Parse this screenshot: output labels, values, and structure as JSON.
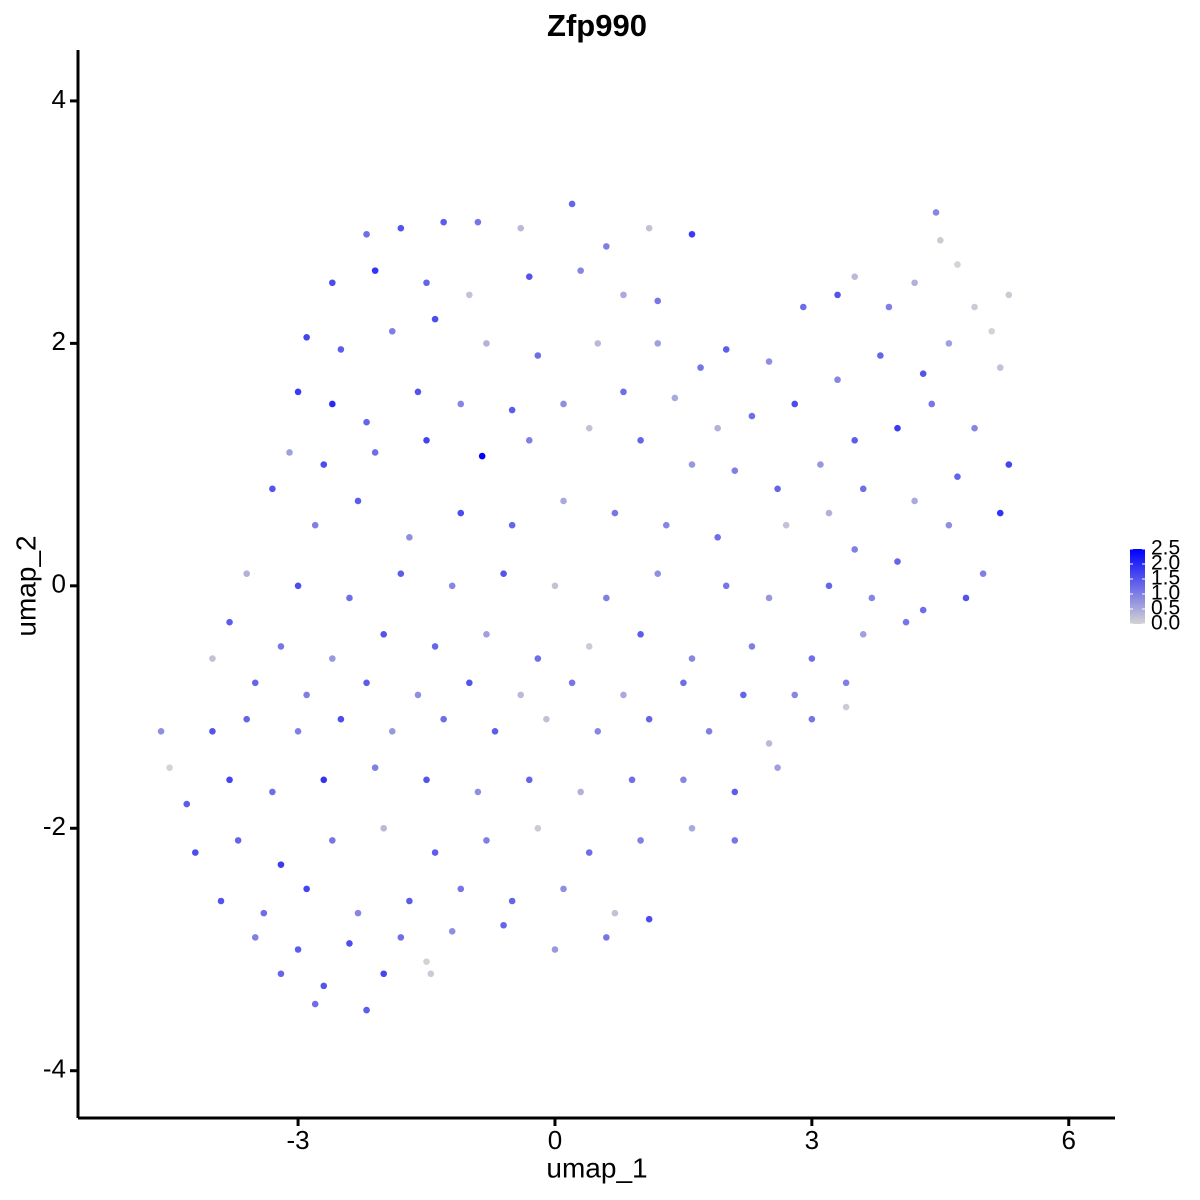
{
  "chart_data": {
    "type": "scatter",
    "title": "Zfp990",
    "x_label": "umap_1",
    "y_label": "umap_2",
    "xlim": [
      -5.57,
      6.54
    ],
    "ylim": [
      -4.39,
      4.42
    ],
    "xticks": [
      -3,
      0,
      3,
      6
    ],
    "yticks": [
      -4,
      -2,
      0,
      2,
      4
    ],
    "colorbar": {
      "colors": [
        "#d3d3d3",
        "#0000ff"
      ],
      "limits": [
        0,
        2.5
      ],
      "ticks": [
        {
          "value": 0,
          "label": "0.0"
        },
        {
          "value": 0.5,
          "label": "0.5"
        },
        {
          "value": 1,
          "label": "1.0"
        },
        {
          "value": 1.5,
          "label": "1.5"
        },
        {
          "value": 2,
          "label": "2.0"
        },
        {
          "value": 2.5,
          "label": "2.5"
        }
      ]
    },
    "x": [
      -2.2,
      -1.8,
      -1.3,
      -0.9,
      -0.4,
      0.2,
      0.6,
      1.1,
      1.6,
      -2.6,
      -2.1,
      -1.5,
      -1.0,
      -0.3,
      0.3,
      0.8,
      1.2,
      -2.9,
      -2.5,
      -1.9,
      -1.4,
      -0.8,
      -0.2,
      0.5,
      1.2,
      -3.0,
      -2.6,
      -2.2,
      -1.6,
      -1.1,
      -0.5,
      0.1,
      0.8,
      1.4,
      -3.1,
      -2.7,
      -2.1,
      -1.5,
      -0.85,
      -0.3,
      0.4,
      1.0,
      1.6,
      1.7,
      2.0,
      2.5,
      2.9,
      3.3,
      3.5,
      3.9,
      4.2,
      4.45,
      4.5,
      4.7,
      4.9,
      5.1,
      5.3,
      5.2,
      4.6,
      4.3,
      3.8,
      3.3,
      2.8,
      2.3,
      1.9,
      2.1,
      2.6,
      3.1,
      3.5,
      4.0,
      4.4,
      4.9,
      5.3,
      5.2,
      4.7,
      4.2,
      3.6,
      3.2,
      -3.3,
      -2.8,
      -2.3,
      -1.7,
      -1.1,
      -0.5,
      0.1,
      0.7,
      1.3,
      1.9,
      2.7,
      3.5,
      4.0,
      4.6,
      5.0,
      -3.6,
      -3.0,
      -2.4,
      -1.8,
      -1.2,
      -0.6,
      0.0,
      0.6,
      1.2,
      2.0,
      2.5,
      3.2,
      3.7,
      4.3,
      4.8,
      -3.8,
      -3.2,
      -2.6,
      -2.0,
      -1.4,
      -0.8,
      -0.2,
      0.4,
      1.0,
      1.6,
      2.3,
      3.0,
      3.6,
      4.1,
      -4.0,
      -3.5,
      -2.9,
      -2.2,
      -1.6,
      -1.0,
      -0.4,
      0.2,
      0.8,
      1.5,
      2.2,
      2.8,
      3.4,
      -4.6,
      -4.5,
      -4.0,
      -3.6,
      -3.0,
      -2.5,
      -1.9,
      -1.3,
      -0.7,
      -0.1,
      0.5,
      1.1,
      1.8,
      2.5,
      3.0,
      3.4,
      -4.3,
      -3.8,
      -3.3,
      -2.7,
      -2.1,
      -1.5,
      -0.9,
      -0.3,
      0.3,
      0.9,
      1.5,
      2.1,
      2.6,
      -4.2,
      -3.7,
      -3.2,
      -2.6,
      -2.0,
      -1.4,
      -0.8,
      -0.2,
      0.4,
      1.0,
      1.6,
      2.1,
      -3.9,
      -3.4,
      -2.9,
      -2.3,
      -1.7,
      -1.1,
      -0.5,
      0.1,
      0.7,
      1.1,
      -3.5,
      -3.0,
      -2.4,
      -1.8,
      -1.2,
      -0.6,
      0.0,
      0.6,
      -3.2,
      -2.7,
      -2.2,
      -2.0,
      -1.5,
      -1.45,
      -2.8
    ],
    "y": [
      2.9,
      2.95,
      3.0,
      3.0,
      2.95,
      3.15,
      2.8,
      2.95,
      2.9,
      2.5,
      2.6,
      2.5,
      2.4,
      2.55,
      2.6,
      2.4,
      2.35,
      2.05,
      1.95,
      2.1,
      2.2,
      2.0,
      1.9,
      2.0,
      2.0,
      1.6,
      1.5,
      1.35,
      1.6,
      1.5,
      1.45,
      1.5,
      1.6,
      1.55,
      1.1,
      1.0,
      1.1,
      1.2,
      1.07,
      1.2,
      1.3,
      1.2,
      1.0,
      1.8,
      1.95,
      1.85,
      2.3,
      2.4,
      2.55,
      2.3,
      2.5,
      3.08,
      2.85,
      2.65,
      2.3,
      2.1,
      2.4,
      1.8,
      2.0,
      1.75,
      1.9,
      1.7,
      1.5,
      1.4,
      1.3,
      0.95,
      0.8,
      1.0,
      1.2,
      1.3,
      1.5,
      1.3,
      1.0,
      0.6,
      0.9,
      0.7,
      0.8,
      0.6,
      0.8,
      0.5,
      0.7,
      0.4,
      0.6,
      0.5,
      0.7,
      0.6,
      0.5,
      0.4,
      0.5,
      0.3,
      0.2,
      0.5,
      0.1,
      0.1,
      0.0,
      -0.1,
      0.1,
      0.0,
      0.1,
      0.0,
      -0.1,
      0.1,
      0.0,
      -0.1,
      0.0,
      -0.1,
      -0.2,
      -0.1,
      -0.3,
      -0.5,
      -0.6,
      -0.4,
      -0.5,
      -0.4,
      -0.6,
      -0.5,
      -0.4,
      -0.6,
      -0.5,
      -0.6,
      -0.4,
      -0.3,
      -0.6,
      -0.8,
      -0.9,
      -0.8,
      -0.9,
      -0.8,
      -0.9,
      -0.8,
      -0.9,
      -0.8,
      -0.9,
      -0.9,
      -0.8,
      -1.2,
      -1.5,
      -1.2,
      -1.1,
      -1.2,
      -1.1,
      -1.2,
      -1.1,
      -1.2,
      -1.1,
      -1.2,
      -1.1,
      -1.2,
      -1.3,
      -1.1,
      -1.0,
      -1.8,
      -1.6,
      -1.7,
      -1.6,
      -1.5,
      -1.6,
      -1.7,
      -1.6,
      -1.7,
      -1.6,
      -1.6,
      -1.7,
      -1.5,
      -2.2,
      -2.1,
      -2.3,
      -2.1,
      -2.0,
      -2.2,
      -2.1,
      -2.0,
      -2.2,
      -2.1,
      -2.0,
      -2.1,
      -2.6,
      -2.7,
      -2.5,
      -2.7,
      -2.6,
      -2.5,
      -2.6,
      -2.5,
      -2.7,
      -2.75,
      -2.9,
      -3.0,
      -2.95,
      -2.9,
      -2.85,
      -2.8,
      -3.0,
      -2.9,
      -3.2,
      -3.3,
      -3.5,
      -3.2,
      -3.1,
      -3.2,
      -3.45
    ],
    "values": [
      1.2,
      1.5,
      1.4,
      1.1,
      0.3,
      1.3,
      1.0,
      0.2,
      1.8,
      1.6,
      1.9,
      1.3,
      0.2,
      1.5,
      0.9,
      0.5,
      1.1,
      1.7,
      1.4,
      1.0,
      1.6,
      0.4,
      1.2,
      0.3,
      0.6,
      1.8,
      2.0,
      1.3,
      1.5,
      0.9,
      1.4,
      0.8,
      1.2,
      0.5,
      0.6,
      1.6,
      1.2,
      1.7,
      2.5,
      1.0,
      0.2,
      1.3,
      0.7,
      1.1,
      1.4,
      0.8,
      1.2,
      1.5,
      0.3,
      1.0,
      0.4,
      0.9,
      0.1,
      0.0,
      0.1,
      0.0,
      0.1,
      0.2,
      0.6,
      1.5,
      1.3,
      0.9,
      1.6,
      1.2,
      0.4,
      1.0,
      1.3,
      0.7,
      1.4,
      1.8,
      1.1,
      0.9,
      1.7,
      1.9,
      1.3,
      0.5,
      1.2,
      0.4,
      1.5,
      1.0,
      1.4,
      0.8,
      1.6,
      1.3,
      0.5,
      1.1,
      0.9,
      1.2,
      0.2,
      1.0,
      1.3,
      0.8,
      1.0,
      0.4,
      1.6,
      1.2,
      1.4,
      0.9,
      1.5,
      0.2,
      1.0,
      0.8,
      1.1,
      0.7,
      1.3,
      0.9,
      1.2,
      1.5,
      1.4,
      1.1,
      0.7,
      1.5,
      1.3,
      0.6,
      1.2,
      0.1,
      1.4,
      0.9,
      1.0,
      1.2,
      0.6,
      1.1,
      0.2,
      1.3,
      1.0,
      1.4,
      0.8,
      1.5,
      0.3,
      1.1,
      0.5,
      1.2,
      1.3,
      0.9,
      1.0,
      0.8,
      0.0,
      1.5,
      1.3,
      1.0,
      1.6,
      0.7,
      1.2,
      1.4,
      0.2,
      0.9,
      1.3,
      1.0,
      0.3,
      1.1,
      0.1,
      1.4,
      1.7,
      1.2,
      1.9,
      1.0,
      1.5,
      0.8,
      1.3,
      0.4,
      1.2,
      0.9,
      1.4,
      0.6,
      1.6,
      1.3,
      1.8,
      1.1,
      0.3,
      1.4,
      1.0,
      0.1,
      1.2,
      1.0,
      0.5,
      1.1,
      1.5,
      1.2,
      1.7,
      0.9,
      1.4,
      1.1,
      1.3,
      0.8,
      0.2,
      1.6,
      1.0,
      1.4,
      1.6,
      1.2,
      0.8,
      1.3,
      0.7,
      1.1,
      1.3,
      1.5,
      1.4,
      1.7,
      0.0,
      0.1,
      1.2
    ]
  }
}
